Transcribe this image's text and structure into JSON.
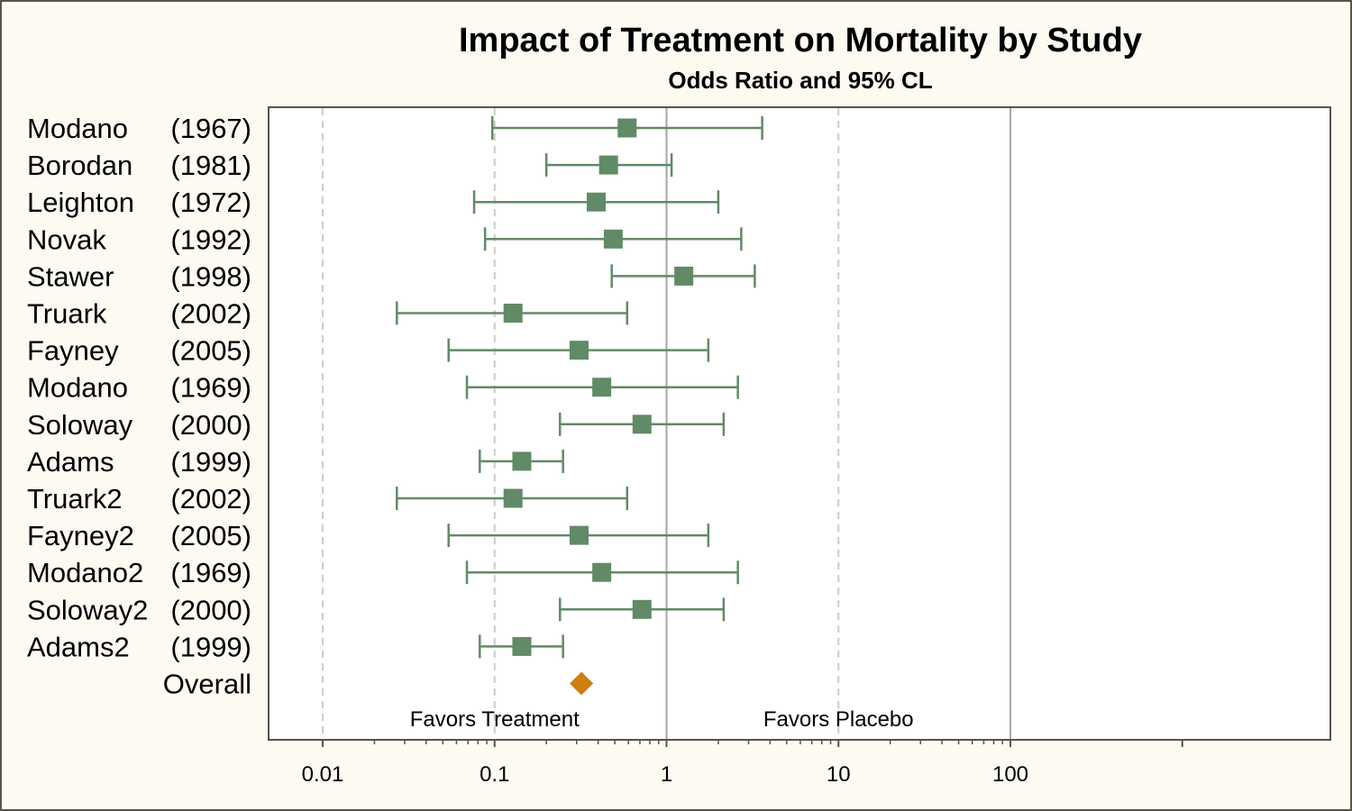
{
  "chart_data": {
    "type": "scatter",
    "title": "Impact of Treatment on Mortality by Study",
    "subtitle": "Odds Ratio and 95% CL",
    "x_scale": "log",
    "xlim": [
      0.005,
      4000
    ],
    "x_ticks": [
      "0.01",
      "0.1",
      "1",
      "10",
      "100"
    ],
    "grid": "vertical reference lines at 0.01, 0.1, 1, 10, 100",
    "studies": [
      {
        "name": "Modano",
        "year": "(1967)",
        "or": 0.59,
        "lcl": 0.097,
        "ucl": 3.6
      },
      {
        "name": "Borodan",
        "year": "(1981)",
        "or": 0.46,
        "lcl": 0.2,
        "ucl": 1.07
      },
      {
        "name": "Leighton",
        "year": "(1972)",
        "or": 0.39,
        "lcl": 0.076,
        "ucl": 2.0
      },
      {
        "name": "Novak",
        "year": "(1992)",
        "or": 0.49,
        "lcl": 0.088,
        "ucl": 2.72
      },
      {
        "name": "Stawer",
        "year": "(1998)",
        "or": 1.26,
        "lcl": 0.48,
        "ucl": 3.26
      },
      {
        "name": "Truark",
        "year": "(2002)",
        "or": 0.128,
        "lcl": 0.027,
        "ucl": 0.59
      },
      {
        "name": "Fayney",
        "year": "(2005)",
        "or": 0.31,
        "lcl": 0.054,
        "ucl": 1.75
      },
      {
        "name": "Modano",
        "year": "(1969)",
        "or": 0.42,
        "lcl": 0.069,
        "ucl": 2.6
      },
      {
        "name": "Soloway",
        "year": "(2000)",
        "or": 0.72,
        "lcl": 0.24,
        "ucl": 2.15
      },
      {
        "name": "Adams",
        "year": "(1999)",
        "or": 0.144,
        "lcl": 0.082,
        "ucl": 0.25
      },
      {
        "name": "Truark2",
        "year": "(2002)",
        "or": 0.128,
        "lcl": 0.027,
        "ucl": 0.59
      },
      {
        "name": "Fayney2",
        "year": "(2005)",
        "or": 0.31,
        "lcl": 0.054,
        "ucl": 1.75
      },
      {
        "name": "Modano2",
        "year": "(1969)",
        "or": 0.42,
        "lcl": 0.069,
        "ucl": 2.6
      },
      {
        "name": "Soloway2",
        "year": "(2000)",
        "or": 0.72,
        "lcl": 0.24,
        "ucl": 2.15
      },
      {
        "name": "Adams2",
        "year": "(1999)",
        "or": 0.144,
        "lcl": 0.082,
        "ucl": 0.25
      }
    ],
    "overall": {
      "name": "Overall",
      "or": 0.32
    },
    "annotations": [
      {
        "text": "Favors Treatment",
        "x": 0.1
      },
      {
        "text": "Favors Placebo",
        "x": 10
      }
    ]
  },
  "colors": {
    "study_marker": "#618a66",
    "overall_marker": "#d07e0e",
    "background": "#fdfaf2",
    "frame": "#57544a",
    "refline_solid": "#a6a6a6",
    "refline_dashed": "#cccccc"
  },
  "icons": {
    "study_marker": "filled-square",
    "overall_marker": "filled-diamond"
  }
}
